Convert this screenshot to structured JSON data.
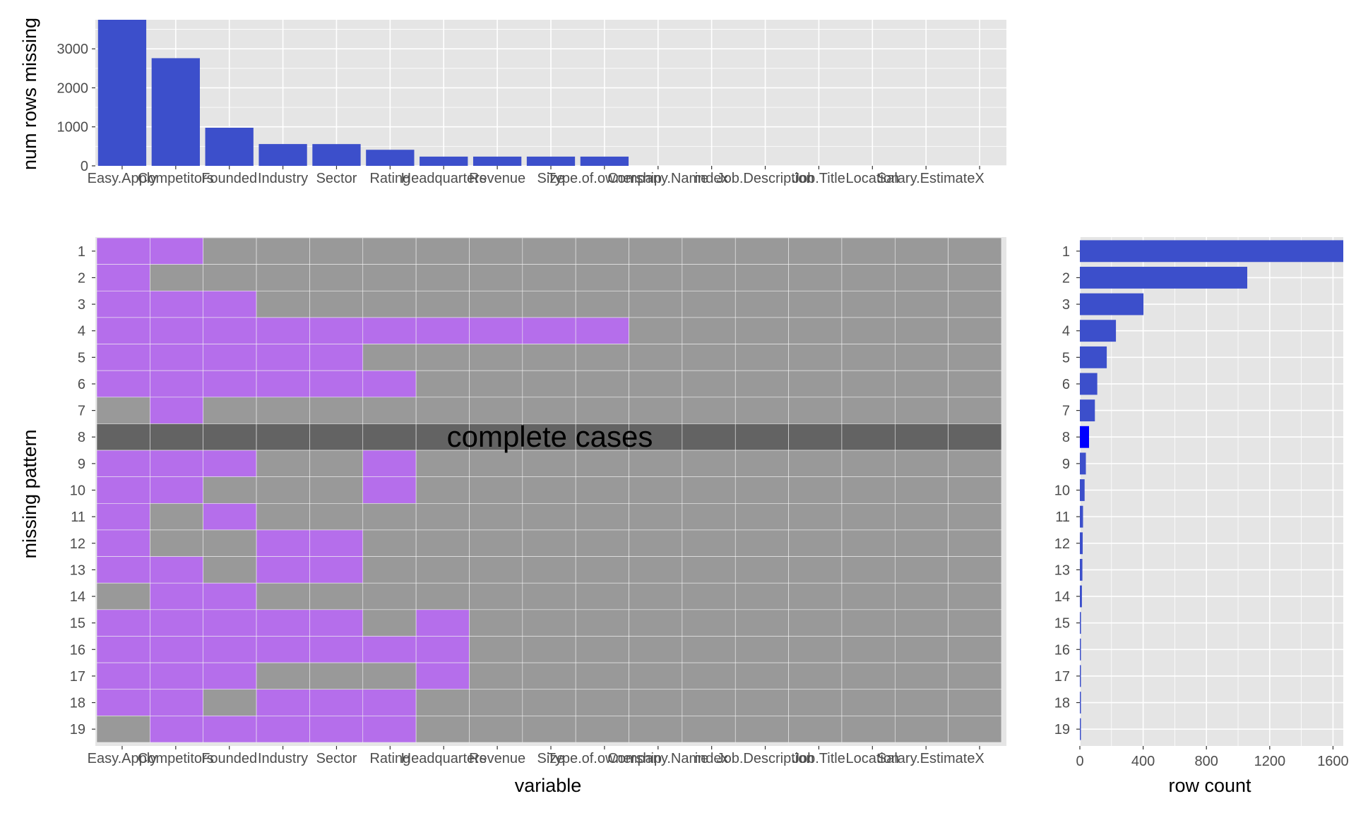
{
  "colors": {
    "panel_bg": "#E5E5E5",
    "grid": "#FFFFFF",
    "bar": "#3C4FCB",
    "bar_highlight": "#0000FF",
    "missing_cell": "#B56EEB",
    "present_cell": "#999999",
    "complete_row": "#636363"
  },
  "chart_data": [
    {
      "type": "bar",
      "panel": "top",
      "ylabel": "num rows missing",
      "xlabel": "",
      "categories": [
        "Easy.Apply",
        "Competitors",
        "Founded",
        "Industry",
        "Sector",
        "Rating",
        "Headquarters",
        "Revenue",
        "Size",
        "Type.of.ownership",
        "Company.Name",
        "index",
        "Job.Description",
        "Job.Title",
        "Location",
        "Salary.Estimate",
        "X"
      ],
      "tick_labels": [
        "Easy.Apply",
        "Competitors",
        "Founded",
        "Industry",
        "Sector",
        "Rating",
        "Headquarters",
        "Revenue",
        "Size",
        "Type.of.ownership",
        "Company.Name",
        "index",
        "Job.Description",
        "Job.Title",
        "Location",
        "Salary.Estimate",
        "X"
      ],
      "values": [
        3745,
        2760,
        977,
        559,
        558,
        412,
        237,
        237,
        237,
        237,
        0,
        0,
        0,
        0,
        0,
        0,
        0
      ],
      "ylim": [
        0,
        3745
      ],
      "y_ticks": [
        0,
        1000,
        2000,
        3000
      ],
      "grid": true
    },
    {
      "type": "heatmap",
      "panel": "main",
      "xlabel": "variable",
      "ylabel": "missing pattern",
      "annotation": "complete cases",
      "complete_cases_pattern": 8,
      "row_labels": [
        "1",
        "2",
        "3",
        "4",
        "5",
        "6",
        "7",
        "8",
        "9",
        "10",
        "11",
        "12",
        "13",
        "14",
        "15",
        "16",
        "17",
        "18",
        "19"
      ],
      "columns": [
        "Easy.Apply",
        "Competitors",
        "Founded",
        "Industry",
        "Sector",
        "Rating",
        "Headquarters",
        "Revenue",
        "Size",
        "Type.of.ownership",
        "Company.Name",
        "index",
        "Job.Description",
        "Job.Title",
        "Location",
        "Salary.Estimate",
        "X"
      ],
      "missing": [
        [
          1,
          1,
          0,
          0,
          0,
          0,
          0,
          0,
          0,
          0,
          0,
          0,
          0,
          0,
          0,
          0,
          0
        ],
        [
          1,
          0,
          0,
          0,
          0,
          0,
          0,
          0,
          0,
          0,
          0,
          0,
          0,
          0,
          0,
          0,
          0
        ],
        [
          1,
          1,
          1,
          0,
          0,
          0,
          0,
          0,
          0,
          0,
          0,
          0,
          0,
          0,
          0,
          0,
          0
        ],
        [
          1,
          1,
          1,
          1,
          1,
          1,
          1,
          1,
          1,
          1,
          0,
          0,
          0,
          0,
          0,
          0,
          0
        ],
        [
          1,
          1,
          1,
          1,
          1,
          0,
          0,
          0,
          0,
          0,
          0,
          0,
          0,
          0,
          0,
          0,
          0
        ],
        [
          1,
          1,
          1,
          1,
          1,
          1,
          0,
          0,
          0,
          0,
          0,
          0,
          0,
          0,
          0,
          0,
          0
        ],
        [
          0,
          1,
          0,
          0,
          0,
          0,
          0,
          0,
          0,
          0,
          0,
          0,
          0,
          0,
          0,
          0,
          0
        ],
        [
          0,
          0,
          0,
          0,
          0,
          0,
          0,
          0,
          0,
          0,
          0,
          0,
          0,
          0,
          0,
          0,
          0
        ],
        [
          1,
          1,
          1,
          0,
          0,
          1,
          0,
          0,
          0,
          0,
          0,
          0,
          0,
          0,
          0,
          0,
          0
        ],
        [
          1,
          1,
          0,
          0,
          0,
          1,
          0,
          0,
          0,
          0,
          0,
          0,
          0,
          0,
          0,
          0,
          0
        ],
        [
          1,
          0,
          1,
          0,
          0,
          0,
          0,
          0,
          0,
          0,
          0,
          0,
          0,
          0,
          0,
          0,
          0
        ],
        [
          1,
          0,
          0,
          1,
          1,
          0,
          0,
          0,
          0,
          0,
          0,
          0,
          0,
          0,
          0,
          0,
          0
        ],
        [
          1,
          1,
          0,
          1,
          1,
          0,
          0,
          0,
          0,
          0,
          0,
          0,
          0,
          0,
          0,
          0,
          0
        ],
        [
          0,
          1,
          1,
          0,
          0,
          0,
          0,
          0,
          0,
          0,
          0,
          0,
          0,
          0,
          0,
          0,
          0
        ],
        [
          1,
          1,
          1,
          1,
          1,
          0,
          1,
          0,
          0,
          0,
          0,
          0,
          0,
          0,
          0,
          0,
          0
        ],
        [
          1,
          1,
          1,
          1,
          1,
          1,
          1,
          0,
          0,
          0,
          0,
          0,
          0,
          0,
          0,
          0,
          0
        ],
        [
          1,
          1,
          1,
          0,
          0,
          0,
          1,
          0,
          0,
          0,
          0,
          0,
          0,
          0,
          0,
          0,
          0
        ],
        [
          1,
          1,
          0,
          1,
          1,
          1,
          0,
          0,
          0,
          0,
          0,
          0,
          0,
          0,
          0,
          0,
          0
        ],
        [
          0,
          1,
          1,
          1,
          1,
          1,
          0,
          0,
          0,
          0,
          0,
          0,
          0,
          0,
          0,
          0,
          0
        ]
      ]
    },
    {
      "type": "bar",
      "panel": "right",
      "orientation": "horizontal",
      "xlabel": "row count",
      "ylabel": "",
      "categories": [
        "1",
        "2",
        "3",
        "4",
        "5",
        "6",
        "7",
        "8",
        "9",
        "10",
        "11",
        "12",
        "13",
        "14",
        "15",
        "16",
        "17",
        "18",
        "19"
      ],
      "values": [
        1665,
        1058,
        402,
        228,
        170,
        110,
        95,
        58,
        38,
        30,
        20,
        18,
        16,
        13,
        7,
        6,
        5,
        4,
        3
      ],
      "highlight_category": "8",
      "xlim": [
        0,
        1665
      ],
      "x_ticks": [
        0,
        400,
        800,
        1200,
        1600
      ],
      "grid": true
    }
  ]
}
